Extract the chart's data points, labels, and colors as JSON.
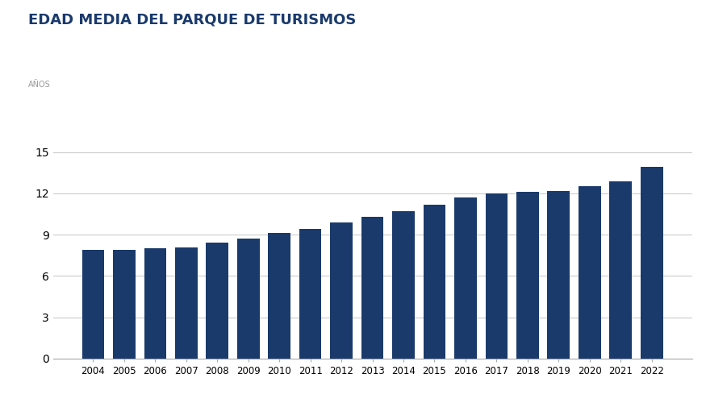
{
  "title": "EDAD MEDIA DEL PARQUE DE TURISMOS",
  "ylabel": "AÑOS",
  "years": [
    2004,
    2005,
    2006,
    2007,
    2008,
    2009,
    2010,
    2011,
    2012,
    2013,
    2014,
    2015,
    2016,
    2017,
    2018,
    2019,
    2020,
    2021,
    2022
  ],
  "values": [
    7.9,
    7.9,
    8.0,
    8.1,
    8.4,
    8.7,
    9.1,
    9.4,
    9.9,
    10.3,
    10.7,
    11.2,
    11.7,
    12.0,
    12.1,
    12.2,
    12.5,
    12.9,
    13.9
  ],
  "bar_color": "#1a3a6b",
  "background_color": "#ffffff",
  "title_color": "#1a3a6b",
  "ylabel_color": "#999999",
  "grid_color": "#cccccc",
  "yticks": [
    0,
    3,
    6,
    9,
    12,
    15
  ],
  "ylim": [
    0,
    15.8
  ],
  "title_fontsize": 13,
  "ylabel_fontsize": 7
}
